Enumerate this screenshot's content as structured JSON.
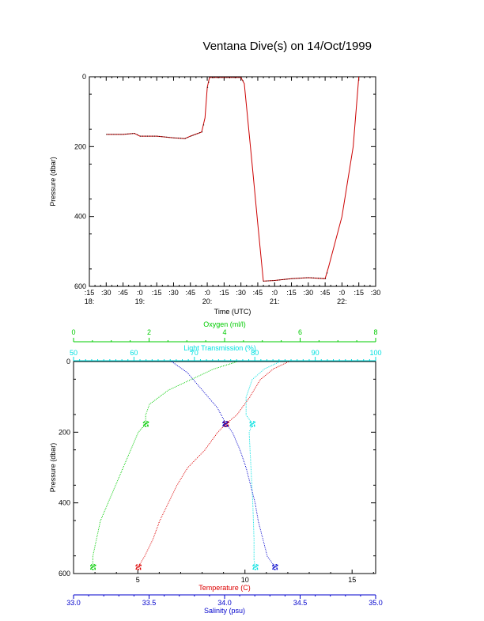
{
  "page": {
    "title": "Ventana Dive(s) on 14/Oct/1999"
  },
  "colors": {
    "axis": "#000000",
    "pressure_trace": "#cc0000",
    "temperature": "#dd0000",
    "oxygen": "#00cc00",
    "light_transmission": "#00e0e0",
    "salinity": "#0000cc"
  },
  "chart_data": [
    {
      "type": "line",
      "title": "Ventana Dive(s) on 14/Oct/1999",
      "xlabel": "Time (UTC)",
      "ylabel": "Pressure (dbar)",
      "x_ticks_minutes": [
        ":15",
        ":30",
        ":45",
        ":0",
        ":15",
        ":30",
        ":45",
        ":0",
        ":15",
        ":30",
        ":45",
        ":0",
        ":15",
        ":30",
        ":45",
        ":0",
        ":15",
        ":30"
      ],
      "x_ticks_hours": [
        {
          "label": "18:",
          "at": "18:15"
        },
        {
          "label": "19:",
          "at": "19:00"
        },
        {
          "label": "20:",
          "at": "20:00"
        },
        {
          "label": "21:",
          "at": "21:00"
        },
        {
          "label": "22:",
          "at": "22:00"
        }
      ],
      "xlim": [
        "18:15",
        "22:30"
      ],
      "ylim": [
        600,
        0
      ],
      "y_ticks": [
        0,
        200,
        400,
        600
      ],
      "series": [
        {
          "points": [
            [
              "18:30",
              165
            ],
            [
              "18:45",
              165
            ],
            [
              "18:55",
              162
            ],
            [
              "19:00",
              170
            ],
            [
              "19:15",
              170
            ],
            [
              "19:30",
              175
            ],
            [
              "19:40",
              177
            ],
            [
              "19:45",
              170
            ],
            [
              "19:55",
              158
            ],
            [
              "19:58",
              118
            ],
            [
              "20:00",
              30
            ],
            [
              "20:02",
              2
            ],
            [
              "20:15",
              2
            ],
            [
              "20:30",
              2
            ],
            [
              "20:33",
              20
            ],
            [
              "20:40",
              250
            ],
            [
              "20:45",
              420
            ],
            [
              "20:50",
              585
            ],
            [
              "21:00",
              583
            ],
            [
              "21:15",
              578
            ],
            [
              "21:30",
              575
            ],
            [
              "21:45",
              578
            ],
            [
              "21:48",
              545
            ],
            [
              "22:00",
              400
            ],
            [
              "22:10",
              200
            ],
            [
              "22:15",
              0
            ]
          ]
        }
      ]
    },
    {
      "type": "scatter",
      "ylabel": "Pressure (dbar)",
      "ylim": [
        600,
        0
      ],
      "y_ticks": [
        0,
        200,
        400,
        600
      ],
      "axes": {
        "oxygen": {
          "label": "Oxygen (ml/l)",
          "range": [
            0,
            8
          ],
          "ticks": [
            0,
            2,
            4,
            6,
            8
          ]
        },
        "light_transmission": {
          "label": "Light Transmission (%)",
          "range": [
            50,
            100
          ],
          "ticks": [
            50,
            60,
            70,
            80,
            90,
            100
          ]
        },
        "temperature": {
          "label": "Temperature (C)",
          "range": [
            2,
            16.1
          ],
          "ticks": [
            5,
            10,
            15
          ]
        },
        "salinity": {
          "label": "Salinity (psu)",
          "range": [
            33.0,
            35.0
          ],
          "ticks": [
            "33.0",
            "33.5",
            "34.0",
            "34.5",
            "35.0"
          ]
        }
      },
      "series": [
        {
          "variable": "temperature",
          "points": [
            [
              12.0,
              0
            ],
            [
              11.3,
              20
            ],
            [
              10.7,
              50
            ],
            [
              10.2,
              100
            ],
            [
              9.6,
              150
            ],
            [
              9.1,
              175
            ],
            [
              8.7,
              200
            ],
            [
              8.1,
              250
            ],
            [
              7.3,
              300
            ],
            [
              6.8,
              350
            ],
            [
              6.4,
              400
            ],
            [
              6.0,
              450
            ],
            [
              5.7,
              500
            ],
            [
              5.3,
              550
            ],
            [
              5.0,
              580
            ]
          ]
        },
        {
          "variable": "oxygen",
          "points": [
            [
              4.3,
              0
            ],
            [
              3.7,
              20
            ],
            [
              3.1,
              50
            ],
            [
              2.5,
              80
            ],
            [
              2.0,
              120
            ],
            [
              1.9,
              150
            ],
            [
              1.9,
              175
            ],
            [
              1.7,
              200
            ],
            [
              1.5,
              250
            ],
            [
              1.3,
              300
            ],
            [
              1.1,
              350
            ],
            [
              0.9,
              400
            ],
            [
              0.7,
              450
            ],
            [
              0.6,
              500
            ],
            [
              0.5,
              550
            ],
            [
              0.5,
              580
            ]
          ]
        },
        {
          "variable": "light_transmission",
          "points": [
            [
              84.0,
              0
            ],
            [
              81.5,
              20
            ],
            [
              79.5,
              50
            ],
            [
              78.5,
              100
            ],
            [
              78.5,
              150
            ],
            [
              79.5,
              175
            ],
            [
              79.0,
              200
            ],
            [
              79.3,
              300
            ],
            [
              79.6,
              400
            ],
            [
              79.8,
              500
            ],
            [
              79.8,
              560
            ],
            [
              80.0,
              580
            ]
          ]
        },
        {
          "variable": "salinity",
          "points": [
            [
              33.65,
              0
            ],
            [
              33.75,
              30
            ],
            [
              33.85,
              80
            ],
            [
              33.95,
              130
            ],
            [
              34.0,
              170
            ],
            [
              34.05,
              200
            ],
            [
              34.1,
              250
            ],
            [
              34.14,
              300
            ],
            [
              34.17,
              350
            ],
            [
              34.2,
              400
            ],
            [
              34.22,
              450
            ],
            [
              34.25,
              500
            ],
            [
              34.28,
              550
            ],
            [
              34.33,
              580
            ]
          ]
        }
      ]
    }
  ]
}
